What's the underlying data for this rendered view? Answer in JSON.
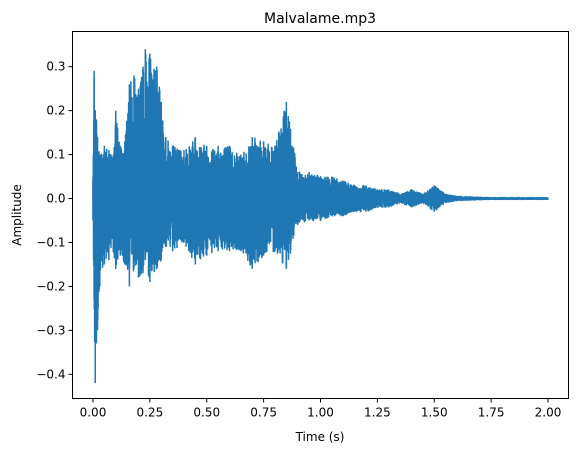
{
  "chart_data": {
    "type": "line",
    "title": "Malvalame.mp3",
    "xlabel": "Time (s)",
    "ylabel": "Amplitude",
    "xlim": [
      -0.09,
      2.09
    ],
    "ylim": [
      -0.455,
      0.38
    ],
    "x_ticks": [
      0.0,
      0.25,
      0.5,
      0.75,
      1.0,
      1.25,
      1.5,
      1.75,
      2.0
    ],
    "x_tick_labels": [
      "0.00",
      "0.25",
      "0.50",
      "0.75",
      "1.00",
      "1.25",
      "1.50",
      "1.75",
      "2.00"
    ],
    "y_ticks": [
      -0.4,
      -0.3,
      -0.2,
      -0.1,
      0.0,
      0.1,
      0.2,
      0.3
    ],
    "y_tick_labels": [
      "−0.4",
      "−0.3",
      "−0.2",
      "−0.1",
      "0.0",
      "0.1",
      "0.2",
      "0.3"
    ],
    "grid": false,
    "legend": "none",
    "line_color": "#1f77b4",
    "series": [
      {
        "x": [
          0.0,
          0.005,
          0.01,
          0.015,
          0.02,
          0.03,
          0.05,
          0.07,
          0.09,
          0.1,
          0.12,
          0.14,
          0.16,
          0.18,
          0.2,
          0.22,
          0.23,
          0.25,
          0.28,
          0.3,
          0.32,
          0.35,
          0.4,
          0.45,
          0.5,
          0.55,
          0.6,
          0.65,
          0.7,
          0.75,
          0.8,
          0.85,
          0.9,
          0.95,
          1.0,
          1.05,
          1.1,
          1.15,
          1.2,
          1.25,
          1.3,
          1.35,
          1.4,
          1.45,
          1.5,
          1.55,
          1.6,
          1.7,
          1.75,
          1.8,
          1.9,
          2.0
        ],
        "upper": [
          0.05,
          0.29,
          0.2,
          0.18,
          0.14,
          0.1,
          0.12,
          0.11,
          0.1,
          0.2,
          0.12,
          0.13,
          0.26,
          0.28,
          0.25,
          0.3,
          0.34,
          0.33,
          0.3,
          0.22,
          0.14,
          0.12,
          0.11,
          0.14,
          0.12,
          0.12,
          0.12,
          0.1,
          0.14,
          0.13,
          0.12,
          0.22,
          0.06,
          0.06,
          0.05,
          0.05,
          0.04,
          0.03,
          0.03,
          0.02,
          0.02,
          0.01,
          0.02,
          0.01,
          0.03,
          0.01,
          0.005,
          0.003,
          0.002,
          0.002,
          0.002,
          0.002
        ],
        "lower": [
          -0.05,
          -0.23,
          -0.42,
          -0.33,
          -0.3,
          -0.2,
          -0.15,
          -0.14,
          -0.12,
          -0.16,
          -0.13,
          -0.15,
          -0.2,
          -0.16,
          -0.18,
          -0.17,
          -0.14,
          -0.19,
          -0.16,
          -0.14,
          -0.11,
          -0.12,
          -0.1,
          -0.15,
          -0.13,
          -0.12,
          -0.12,
          -0.12,
          -0.16,
          -0.13,
          -0.12,
          -0.16,
          -0.06,
          -0.05,
          -0.05,
          -0.04,
          -0.04,
          -0.03,
          -0.03,
          -0.02,
          -0.02,
          -0.01,
          -0.02,
          -0.01,
          -0.03,
          -0.01,
          -0.005,
          -0.003,
          -0.002,
          -0.002,
          -0.002,
          -0.002
        ]
      }
    ]
  }
}
